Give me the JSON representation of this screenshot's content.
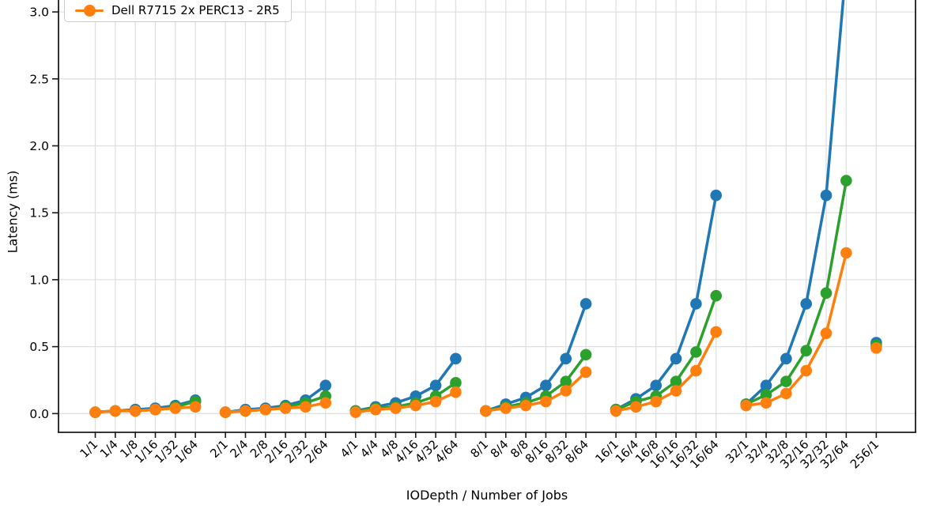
{
  "chart_data": {
    "type": "line",
    "title": "",
    "xlabel": "IODepth / Number of Jobs",
    "ylabel": "Latency (ms)",
    "categories": [
      "1/1",
      "1/4",
      "1/8",
      "1/16",
      "1/32",
      "1/64",
      "2/1",
      "2/4",
      "2/8",
      "2/16",
      "2/32",
      "2/64",
      "4/1",
      "4/4",
      "4/8",
      "4/16",
      "4/32",
      "4/64",
      "8/1",
      "8/4",
      "8/8",
      "8/16",
      "8/32",
      "8/64",
      "16/1",
      "16/4",
      "16/8",
      "16/16",
      "16/32",
      "16/64",
      "32/1",
      "32/4",
      "32/8",
      "32/16",
      "32/32",
      "32/64",
      "256/1"
    ],
    "group_sizes": [
      6,
      6,
      6,
      6,
      6,
      6,
      1
    ],
    "group_gap_slots": 0.5,
    "series": [
      {
        "name": "",
        "color": "#1f77b4",
        "values": [
          0.01,
          0.02,
          0.03,
          0.04,
          0.06,
          0.1,
          0.01,
          0.03,
          0.04,
          0.06,
          0.1,
          0.21,
          0.02,
          0.05,
          0.08,
          0.13,
          0.21,
          0.41,
          0.02,
          0.07,
          0.12,
          0.21,
          0.41,
          0.82,
          0.03,
          0.11,
          0.21,
          0.41,
          0.82,
          1.63,
          0.07,
          0.21,
          0.41,
          0.82,
          1.63,
          3.35,
          0.53
        ]
      },
      {
        "name": "",
        "color": "#2ca02c",
        "values": [
          0.01,
          0.02,
          0.02,
          0.03,
          0.05,
          0.09,
          0.01,
          0.02,
          0.03,
          0.05,
          0.08,
          0.13,
          0.02,
          0.04,
          0.05,
          0.08,
          0.13,
          0.23,
          0.02,
          0.05,
          0.08,
          0.13,
          0.24,
          0.44,
          0.03,
          0.09,
          0.13,
          0.24,
          0.46,
          0.88,
          0.07,
          0.14,
          0.24,
          0.47,
          0.9,
          1.74,
          0.51
        ]
      },
      {
        "name": "Dell R7715 2x PERC13 - 2R5",
        "color": "#ff7f0e",
        "values": [
          0.01,
          0.02,
          0.02,
          0.03,
          0.04,
          0.05,
          0.01,
          0.02,
          0.03,
          0.04,
          0.05,
          0.08,
          0.01,
          0.03,
          0.04,
          0.06,
          0.09,
          0.16,
          0.02,
          0.04,
          0.06,
          0.09,
          0.17,
          0.31,
          0.02,
          0.05,
          0.09,
          0.17,
          0.32,
          0.61,
          0.06,
          0.08,
          0.15,
          0.32,
          0.6,
          1.2,
          0.49
        ]
      }
    ],
    "yticks": [
      0.0,
      0.5,
      1.0,
      1.5,
      2.0,
      2.5,
      3.0
    ],
    "ytick_labels": [
      "0.0",
      "0.5",
      "1.0",
      "1.5",
      "2.0",
      "2.5",
      "3.0"
    ],
    "ylim_visible_top": 3.09,
    "grid": true,
    "legend_position": "upper-left-clipped",
    "legend_visible_entries": [
      {
        "label": "Dell R7715 2x PERC13 - 2R5",
        "color": "#ff7f0e",
        "marker": "circle-on-line"
      }
    ],
    "colors": {
      "grid": "#e0e0e0",
      "spine": "#1a1a1a",
      "text": "#000000"
    }
  }
}
